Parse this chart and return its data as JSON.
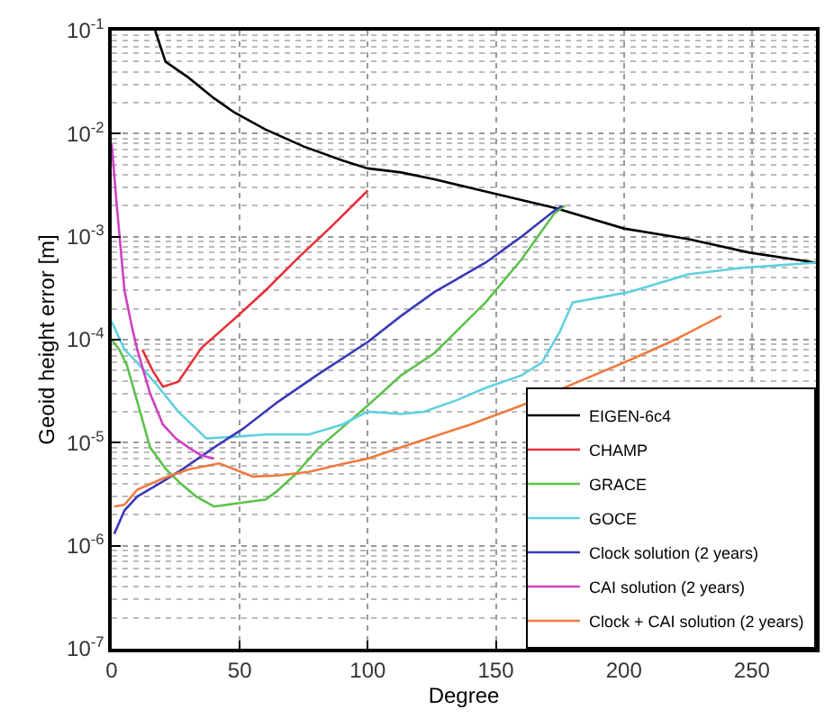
{
  "chart_data": {
    "type": "line",
    "xlabel": "Degree",
    "ylabel": "Geoid height error [m]",
    "log": "y",
    "grid": true,
    "legend": "bottom right",
    "line_style": "solid",
    "marker": "none",
    "xlim": [
      0,
      275
    ],
    "xticks": [
      0,
      50,
      100,
      150,
      200,
      250
    ],
    "ylim": [
      1e-07,
      0.1
    ],
    "yticks": [
      {
        "value": 1e-07,
        "label": "10$^{-7}$"
      },
      {
        "value": 1e-06,
        "label": "10$^{-6}$"
      },
      {
        "value": 1e-05,
        "label": "10$^{-5}$"
      },
      {
        "value": 0.0001,
        "label": "10$^{-4}$"
      },
      {
        "value": 0.001,
        "label": "10$^{-3}$"
      },
      {
        "value": 0.01,
        "label": "10$^{-2}$"
      },
      {
        "value": 0.1,
        "label": "10$^{-1}$"
      }
    ],
    "series": [
      {
        "name": "EIGEN-6c4",
        "color": "#000000",
        "x": [
          17,
          21,
          30,
          40,
          48,
          60,
          75,
          90,
          100,
          113,
          126,
          150,
          173,
          200,
          225,
          249,
          275
        ],
        "values": [
          0.1,
          0.05,
          0.035,
          0.022,
          0.016,
          0.011,
          0.0075,
          0.0055,
          0.0046,
          0.0042,
          0.0036,
          0.0026,
          0.0019,
          0.0012,
          0.00095,
          0.0007,
          0.00056
        ]
      },
      {
        "name": "CHAMP",
        "color": "#e8303a",
        "x": [
          12,
          16,
          20,
          26,
          35,
          48,
          60,
          73,
          85,
          100
        ],
        "values": [
          8e-05,
          5e-05,
          3.5e-05,
          3.9e-05,
          8.3e-05,
          0.00016,
          0.0003,
          0.00063,
          0.0012,
          0.0028
        ]
      },
      {
        "name": "GRACE",
        "color": "#5cc24a",
        "x": [
          0,
          3,
          6,
          10,
          15,
          21,
          27,
          33,
          40,
          50,
          60,
          64,
          72,
          81,
          90,
          100,
          113,
          126,
          146,
          160,
          173,
          177
        ],
        "values": [
          0.0001,
          8e-05,
          5.6e-05,
          2.5e-05,
          9e-06,
          5.6e-06,
          4e-06,
          3e-06,
          2.4e-06,
          2.6e-06,
          2.8e-06,
          3.3e-06,
          5e-06,
          9e-06,
          1.4e-05,
          2.3e-05,
          4.5e-05,
          7.4e-05,
          0.00023,
          0.0006,
          0.0017,
          0.002
        ]
      },
      {
        "name": "GOCE",
        "color": "#5fd0e0",
        "x": [
          0,
          5,
          10,
          17,
          26,
          37,
          50,
          60,
          77,
          90,
          100,
          113,
          122,
          135,
          146,
          160,
          168,
          175,
          180,
          202,
          225,
          247,
          275
        ],
        "values": [
          0.00015,
          8e-05,
          6e-05,
          3.8e-05,
          2e-05,
          1.1e-05,
          1.15e-05,
          1.2e-05,
          1.2e-05,
          1.5e-05,
          2e-05,
          1.9e-05,
          2e-05,
          2.6e-05,
          3.4e-05,
          4.5e-05,
          6e-05,
          0.00012,
          0.00023,
          0.00029,
          0.00043,
          0.0005,
          0.00056
        ]
      },
      {
        "name": "Clock solution (2 years)",
        "color": "#3a3ab8",
        "x": [
          1,
          5,
          10,
          20,
          28,
          40,
          51,
          65,
          80,
          100,
          113,
          126,
          146,
          160,
          173,
          176
        ],
        "values": [
          1.3e-06,
          2.2e-06,
          3e-06,
          4.2e-06,
          5.6e-06,
          9e-06,
          1.35e-05,
          2.5e-05,
          4.5e-05,
          9.5e-05,
          0.00017,
          0.00029,
          0.00056,
          0.001,
          0.0018,
          0.002
        ]
      },
      {
        "name": "CAI solution (2 years)",
        "color": "#d040c0",
        "x": [
          0,
          2,
          5,
          8,
          10,
          15,
          20,
          25,
          30,
          35,
          40
        ],
        "values": [
          0.008,
          0.002,
          0.0003,
          0.00013,
          8e-05,
          3e-05,
          1.5e-05,
          1.1e-05,
          9e-06,
          7.5e-06,
          7e-06
        ]
      },
      {
        "name": "Clock + CAI solution (2 years)",
        "color": "#f07a40",
        "x": [
          1,
          5,
          10,
          20,
          30,
          42,
          55,
          65,
          77,
          90,
          100,
          113,
          122,
          140,
          160,
          180,
          202,
          220,
          238
        ],
        "values": [
          2.4e-06,
          2.5e-06,
          3.5e-06,
          4.5e-06,
          5.5e-06,
          6.3e-06,
          4.7e-06,
          4.8e-06,
          5.2e-06,
          6.2e-06,
          7e-06,
          9e-06,
          1.07e-05,
          1.5e-05,
          2.3e-05,
          3.7e-05,
          6.3e-05,
          0.0001,
          0.00017
        ]
      }
    ]
  }
}
